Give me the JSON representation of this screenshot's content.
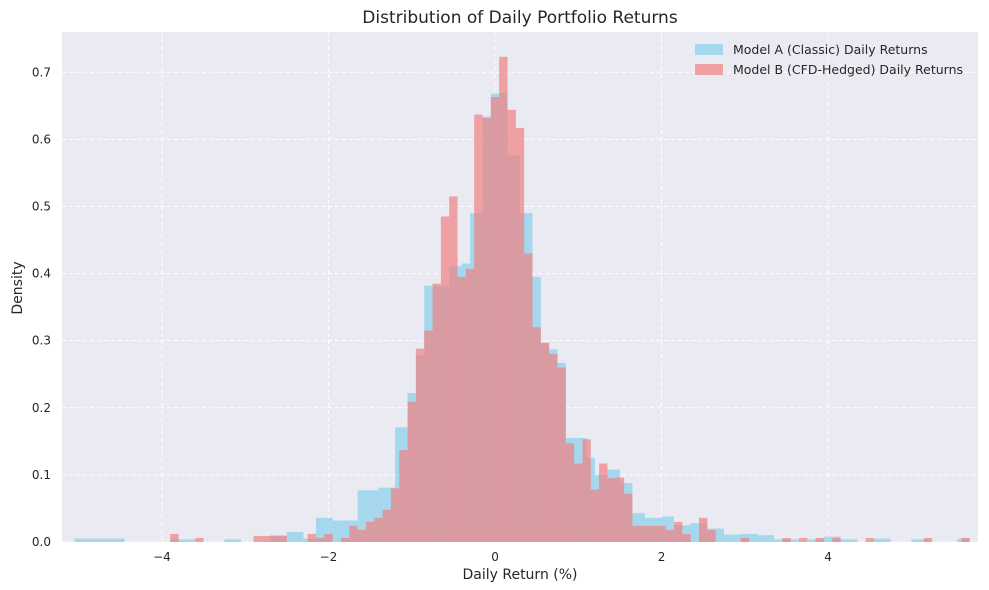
{
  "chart_data": {
    "type": "bar",
    "title": "Distribution of Daily Portfolio Returns",
    "xlabel": "Daily Return (%)",
    "ylabel": "Density",
    "xlim": [
      -5.2,
      5.8
    ],
    "ylim": [
      0,
      0.76
    ],
    "xticks": [
      -4,
      -2,
      0,
      2,
      4
    ],
    "xtick_labels": [
      "−4",
      "−2",
      "0",
      "2",
      "4"
    ],
    "yticks": [
      0.0,
      0.1,
      0.2,
      0.3,
      0.4,
      0.5,
      0.6,
      0.7
    ],
    "ytick_labels": [
      "0.0",
      "0.1",
      "0.2",
      "0.3",
      "0.4",
      "0.5",
      "0.6",
      "0.7"
    ],
    "grid": true,
    "legend_position": "top-right",
    "series": [
      {
        "name": "Model A (Classic) Daily Returns",
        "color": "#87ceeb",
        "opacity": 0.7,
        "bins": [
          [
            -5.05,
            -4.9,
            0.005
          ],
          [
            -4.9,
            -4.75,
            0.005
          ],
          [
            -4.75,
            -4.6,
            0.005
          ],
          [
            -4.6,
            -4.45,
            0.005
          ],
          [
            -3.9,
            -3.75,
            0.004
          ],
          [
            -3.75,
            -3.6,
            0.004
          ],
          [
            -3.25,
            -3.05,
            0.004
          ],
          [
            -2.7,
            -2.5,
            0.01
          ],
          [
            -2.5,
            -2.3,
            0.015
          ],
          [
            -2.3,
            -2.15,
            0.005
          ],
          [
            -2.15,
            -1.95,
            0.036
          ],
          [
            -1.95,
            -1.65,
            0.032
          ],
          [
            -1.65,
            -1.4,
            0.077
          ],
          [
            -1.4,
            -1.2,
            0.081
          ],
          [
            -1.2,
            -1.05,
            0.171
          ],
          [
            -1.05,
            -0.95,
            0.222
          ],
          [
            -0.95,
            -0.85,
            0.278
          ],
          [
            -0.85,
            -0.7,
            0.382
          ],
          [
            -0.7,
            -0.55,
            0.381
          ],
          [
            -0.55,
            -0.4,
            0.411
          ],
          [
            -0.4,
            -0.3,
            0.415
          ],
          [
            -0.3,
            -0.15,
            0.49
          ],
          [
            -0.15,
            -0.05,
            0.634
          ],
          [
            -0.05,
            0.05,
            0.668
          ],
          [
            0.05,
            0.15,
            0.669
          ],
          [
            0.15,
            0.3,
            0.576
          ],
          [
            0.3,
            0.45,
            0.49
          ],
          [
            0.45,
            0.55,
            0.395
          ],
          [
            0.55,
            0.65,
            0.296
          ],
          [
            0.65,
            0.75,
            0.287
          ],
          [
            0.75,
            0.85,
            0.267
          ],
          [
            0.85,
            0.95,
            0.155
          ],
          [
            0.95,
            1.1,
            0.155
          ],
          [
            1.1,
            1.2,
            0.125
          ],
          [
            1.2,
            1.35,
            0.1
          ],
          [
            1.35,
            1.5,
            0.108
          ],
          [
            1.5,
            1.65,
            0.088
          ],
          [
            1.65,
            1.8,
            0.043
          ],
          [
            1.8,
            2.0,
            0.036
          ],
          [
            2.0,
            2.15,
            0.038
          ],
          [
            2.15,
            2.35,
            0.025
          ],
          [
            2.35,
            2.55,
            0.028
          ],
          [
            2.55,
            2.75,
            0.02
          ],
          [
            2.75,
            2.95,
            0.011
          ],
          [
            2.95,
            3.15,
            0.012
          ],
          [
            3.15,
            3.35,
            0.01
          ],
          [
            3.35,
            3.65,
            0.004
          ],
          [
            3.75,
            3.95,
            0.004
          ],
          [
            3.95,
            4.15,
            0.008
          ],
          [
            4.15,
            4.35,
            0.004
          ],
          [
            4.55,
            4.75,
            0.005
          ],
          [
            5.0,
            5.2,
            0.004
          ],
          [
            5.55,
            5.7,
            0.005
          ]
        ]
      },
      {
        "name": "Model B (CFD-Hedged) Daily Returns",
        "color": "#f08080",
        "opacity": 0.7,
        "bins": [
          [
            -3.9,
            -3.8,
            0.012
          ],
          [
            -3.6,
            -3.5,
            0.006
          ],
          [
            -2.9,
            -2.7,
            0.009
          ],
          [
            -2.7,
            -2.5,
            0.009
          ],
          [
            -2.25,
            -2.15,
            0.012
          ],
          [
            -2.15,
            -2.05,
            0.006
          ],
          [
            -2.05,
            -1.95,
            0.012
          ],
          [
            -1.85,
            -1.75,
            0.006
          ],
          [
            -1.75,
            -1.65,
            0.024
          ],
          [
            -1.65,
            -1.55,
            0.018
          ],
          [
            -1.55,
            -1.45,
            0.03
          ],
          [
            -1.45,
            -1.35,
            0.036
          ],
          [
            -1.35,
            -1.25,
            0.048
          ],
          [
            -1.25,
            -1.15,
            0.08
          ],
          [
            -1.15,
            -1.05,
            0.137
          ],
          [
            -1.05,
            -0.95,
            0.209
          ],
          [
            -0.95,
            -0.85,
            0.288
          ],
          [
            -0.85,
            -0.75,
            0.315
          ],
          [
            -0.75,
            -0.65,
            0.385
          ],
          [
            -0.65,
            -0.55,
            0.485
          ],
          [
            -0.55,
            -0.45,
            0.515
          ],
          [
            -0.45,
            -0.35,
            0.395
          ],
          [
            -0.35,
            -0.25,
            0.407
          ],
          [
            -0.25,
            -0.15,
            0.637
          ],
          [
            -0.15,
            -0.05,
            0.632
          ],
          [
            -0.05,
            0.05,
            0.663
          ],
          [
            0.05,
            0.15,
            0.723
          ],
          [
            0.15,
            0.25,
            0.644
          ],
          [
            0.25,
            0.35,
            0.617
          ],
          [
            0.35,
            0.45,
            0.43
          ],
          [
            0.45,
            0.55,
            0.32
          ],
          [
            0.55,
            0.65,
            0.297
          ],
          [
            0.65,
            0.75,
            0.28
          ],
          [
            0.75,
            0.85,
            0.26
          ],
          [
            0.85,
            0.95,
            0.147
          ],
          [
            0.95,
            1.05,
            0.117
          ],
          [
            1.05,
            1.15,
            0.153
          ],
          [
            1.15,
            1.25,
            0.078
          ],
          [
            1.25,
            1.35,
            0.117
          ],
          [
            1.35,
            1.45,
            0.095
          ],
          [
            1.45,
            1.55,
            0.096
          ],
          [
            1.55,
            1.65,
            0.072
          ],
          [
            1.65,
            1.75,
            0.024
          ],
          [
            1.75,
            1.85,
            0.024
          ],
          [
            1.85,
            1.95,
            0.024
          ],
          [
            1.95,
            2.05,
            0.024
          ],
          [
            2.05,
            2.15,
            0.018
          ],
          [
            2.15,
            2.25,
            0.03
          ],
          [
            2.25,
            2.35,
            0.012
          ],
          [
            2.45,
            2.55,
            0.036
          ],
          [
            2.55,
            2.65,
            0.018
          ],
          [
            2.95,
            3.05,
            0.006
          ],
          [
            3.45,
            3.55,
            0.006
          ],
          [
            3.65,
            3.75,
            0.006
          ],
          [
            3.85,
            3.95,
            0.006
          ],
          [
            4.05,
            4.15,
            0.006
          ],
          [
            4.45,
            4.55,
            0.006
          ],
          [
            5.15,
            5.25,
            0.006
          ],
          [
            5.6,
            5.7,
            0.006
          ]
        ]
      }
    ]
  }
}
